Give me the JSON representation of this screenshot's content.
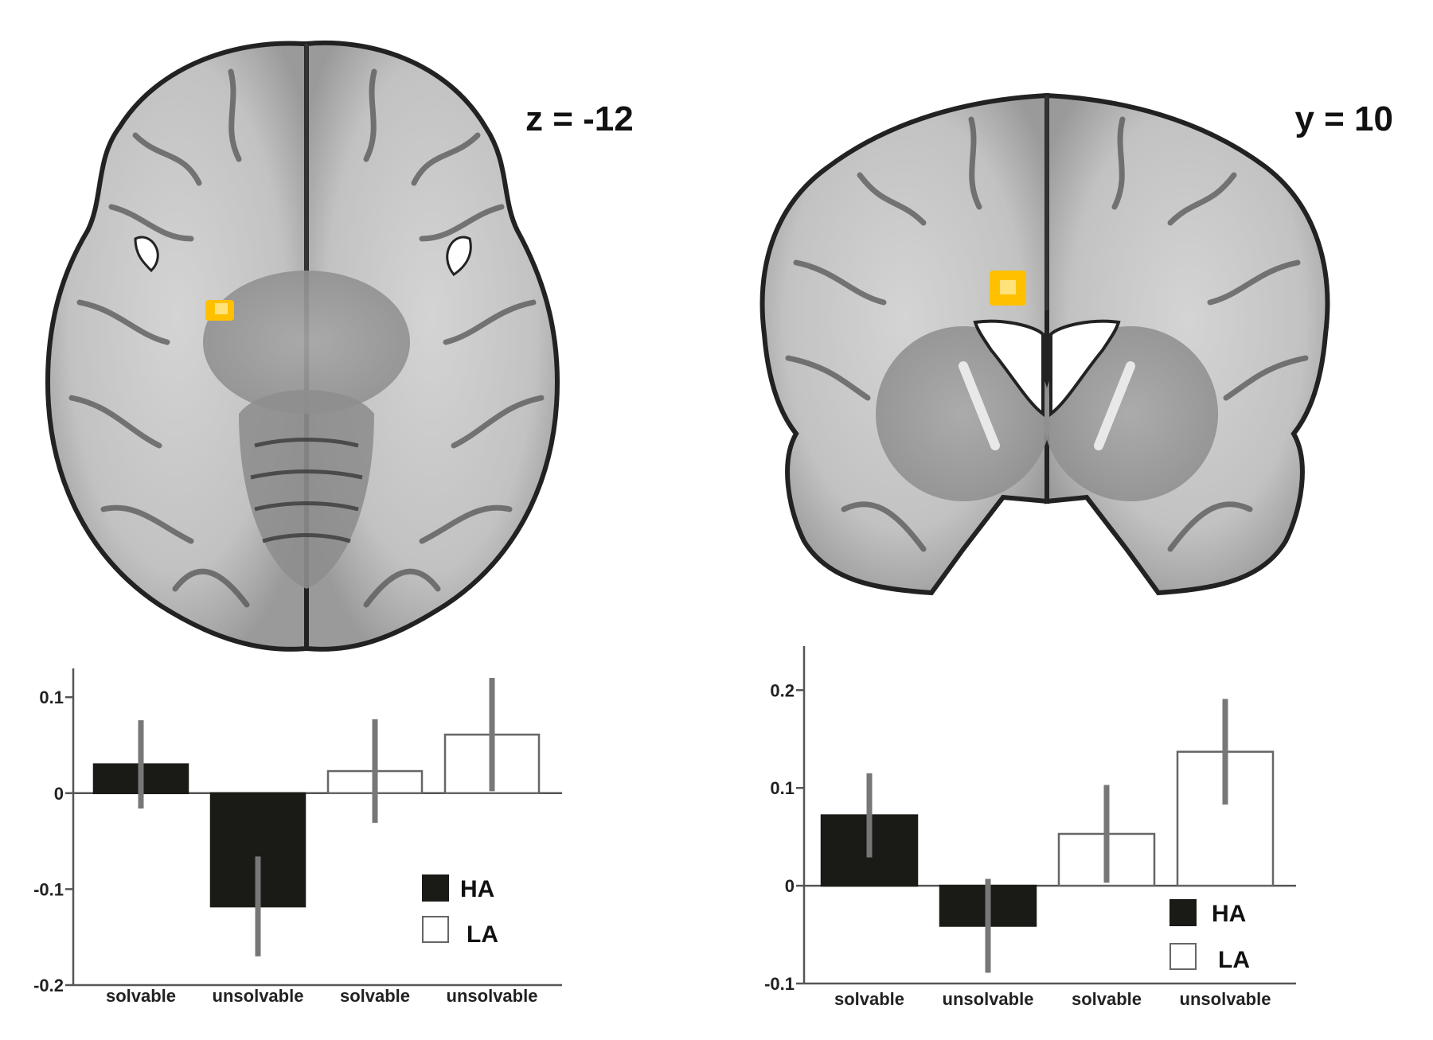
{
  "panels": [
    {
      "slice_label": "z = -12",
      "view": "axial"
    },
    {
      "slice_label": "y = 10",
      "view": "coronal"
    }
  ],
  "colors": {
    "ha_fill": "#1a1a16",
    "la_fill": "#ffffff",
    "error_bar": "#777777",
    "activation": "#ffc000",
    "axis": "#555555"
  },
  "chart_data": [
    {
      "type": "bar",
      "categories": [
        "solvable",
        "unsolvable",
        "solvable",
        "unsolvable"
      ],
      "groups": [
        "HA",
        "HA",
        "LA",
        "LA"
      ],
      "values": [
        0.03,
        -0.118,
        0.023,
        0.061
      ],
      "errors": [
        0.046,
        0.052,
        0.054,
        0.059
      ],
      "ylim": [
        -0.2,
        0.13
      ],
      "yticks": [
        0.1,
        0,
        -0.1,
        -0.2
      ],
      "ytick_labels": [
        "0.1",
        "0",
        "-0.1",
        "-0.2"
      ],
      "legend": [
        {
          "name": "HA"
        },
        {
          "name": "LA"
        }
      ],
      "legend_position": "bottom-right"
    },
    {
      "type": "bar",
      "categories": [
        "solvable",
        "unsolvable",
        "solvable",
        "unsolvable"
      ],
      "groups": [
        "HA",
        "HA",
        "LA",
        "LA"
      ],
      "values": [
        0.072,
        -0.041,
        0.053,
        0.137
      ],
      "errors": [
        0.043,
        0.048,
        0.05,
        0.054
      ],
      "ylim": [
        -0.1,
        0.245
      ],
      "yticks": [
        0.2,
        0.1,
        0,
        -0.1
      ],
      "ytick_labels": [
        "0.2",
        "0.1",
        "0",
        "-0.1"
      ],
      "legend": [
        {
          "name": "HA"
        },
        {
          "name": "LA"
        }
      ],
      "legend_position": "bottom-right"
    }
  ]
}
